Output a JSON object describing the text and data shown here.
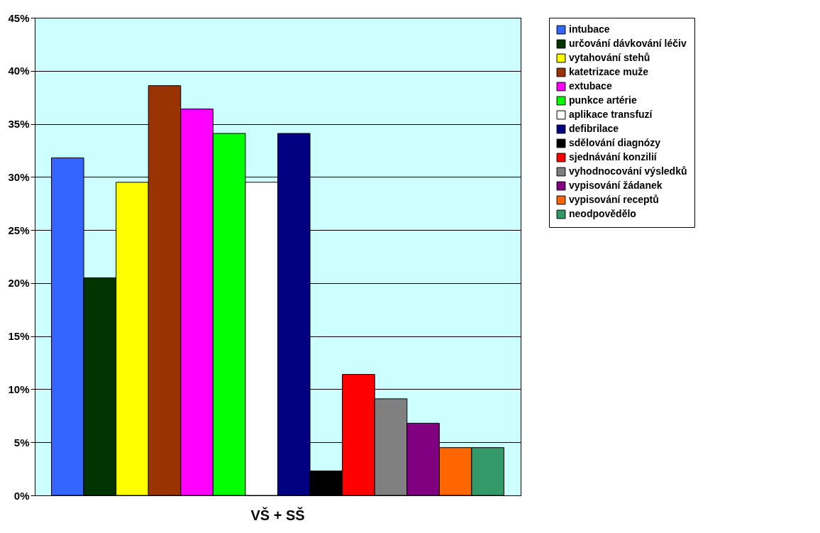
{
  "chart_data": {
    "type": "bar",
    "categories": [
      "VŠ + SŠ"
    ],
    "series": [
      {
        "name": "intubace",
        "color": "#3366ff",
        "values": [
          31.8
        ]
      },
      {
        "name": "určování dávkování léčiv",
        "color": "#003300",
        "values": [
          20.5
        ]
      },
      {
        "name": "vytahování stehů",
        "color": "#ffff00",
        "values": [
          29.5
        ]
      },
      {
        "name": "katetrizace muže",
        "color": "#993300",
        "values": [
          38.6
        ]
      },
      {
        "name": "extubace",
        "color": "#ff00ff",
        "values": [
          36.4
        ]
      },
      {
        "name": "punkce artérie",
        "color": "#00ff00",
        "values": [
          34.1
        ]
      },
      {
        "name": "aplikace transfuzí",
        "color": "#ffffff",
        "values": [
          29.5
        ]
      },
      {
        "name": "defibrilace",
        "color": "#000080",
        "values": [
          34.1
        ]
      },
      {
        "name": "sdělování diagnózy",
        "color": "#000000",
        "values": [
          2.3
        ]
      },
      {
        "name": "sjednávání konzilií",
        "color": "#ff0000",
        "values": [
          11.4
        ]
      },
      {
        "name": "vyhodnocování výsledků",
        "color": "#808080",
        "values": [
          9.1
        ]
      },
      {
        "name": "vypisování žádanek",
        "color": "#800080",
        "values": [
          6.8
        ]
      },
      {
        "name": "vypisování receptů",
        "color": "#ff6600",
        "values": [
          4.5
        ]
      },
      {
        "name": "neodpovědělo",
        "color": "#339966",
        "values": [
          4.5
        ]
      }
    ],
    "ylim": [
      0,
      45
    ],
    "yticks": [
      {
        "value": 0,
        "label": "0%"
      },
      {
        "value": 5,
        "label": "5%"
      },
      {
        "value": 10,
        "label": "10%"
      },
      {
        "value": 15,
        "label": "15%"
      },
      {
        "value": 20,
        "label": "20%"
      },
      {
        "value": 25,
        "label": "25%"
      },
      {
        "value": 30,
        "label": "30%"
      },
      {
        "value": 35,
        "label": "35%"
      },
      {
        "value": 40,
        "label": "40%"
      },
      {
        "value": 45,
        "label": "45%"
      }
    ],
    "grid": "y",
    "legend": "right"
  }
}
